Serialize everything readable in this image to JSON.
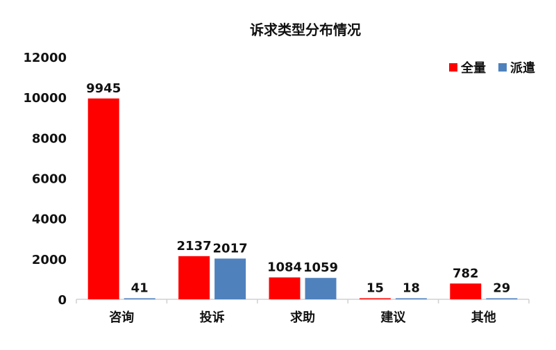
{
  "chart_data": {
    "type": "bar",
    "title": "诉求类型分布情况",
    "xlabel": "",
    "ylabel": "",
    "categories": [
      "咨询",
      "投诉",
      "求助",
      "建议",
      "其他"
    ],
    "series": [
      {
        "name": "全量",
        "color": "#ff0000",
        "values": [
          9945,
          2137,
          1084,
          15,
          782
        ]
      },
      {
        "name": "派遣",
        "color": "#4f81bd",
        "values": [
          41,
          2017,
          1059,
          18,
          29
        ]
      }
    ],
    "ylim": [
      0,
      12000
    ],
    "yticks": [
      0,
      2000,
      4000,
      6000,
      8000,
      10000,
      12000
    ],
    "grid": false,
    "legend_position": "top-right",
    "data_labels": true
  }
}
